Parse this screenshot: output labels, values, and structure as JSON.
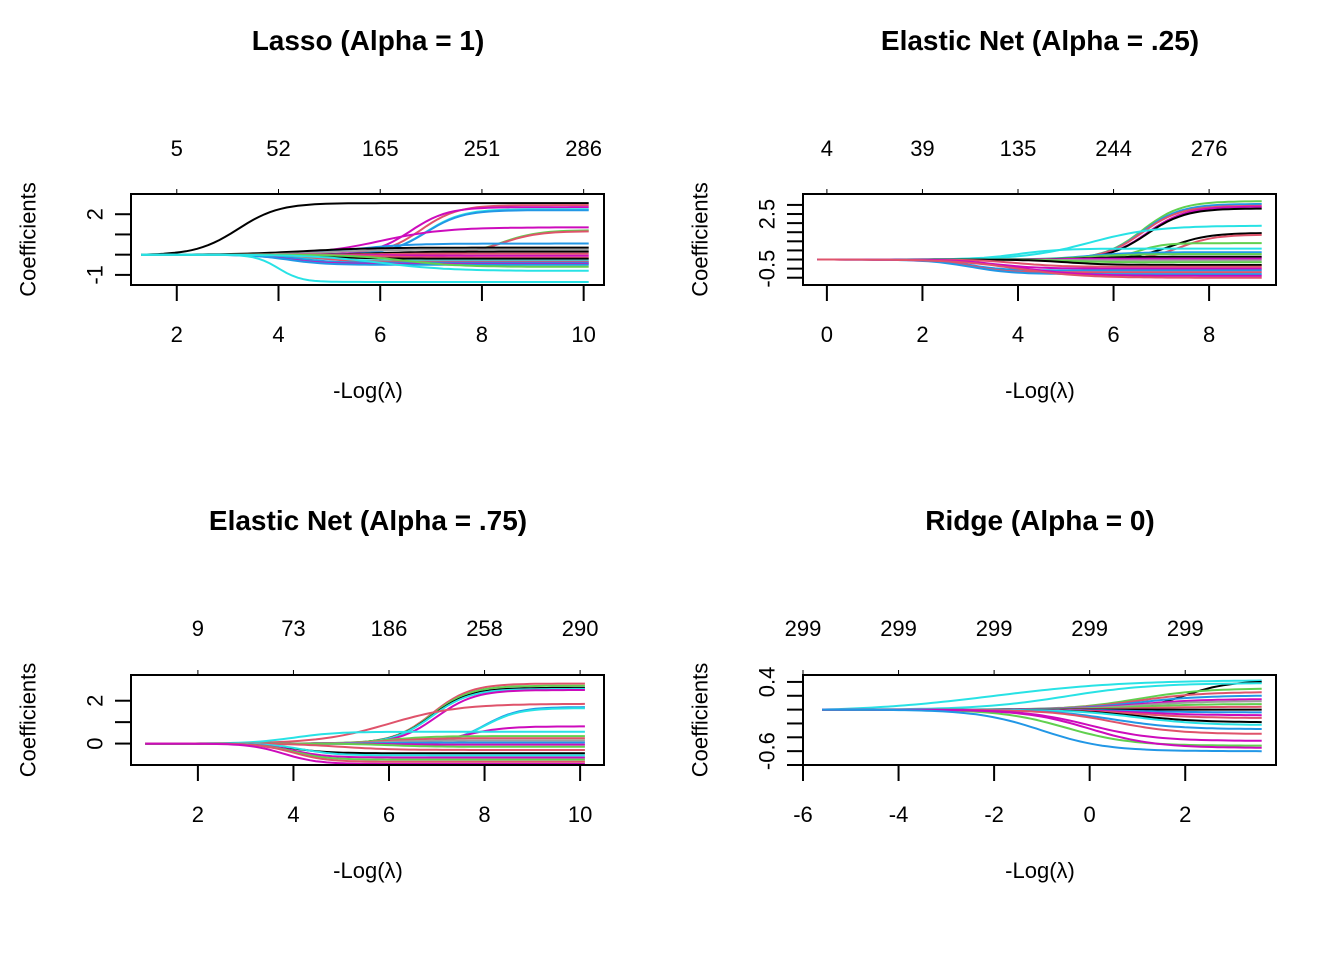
{
  "chart_data": [
    {
      "type": "line",
      "title": "Lasso (Alpha = 1)",
      "xlabel": "-Log(λ)",
      "ylabel": "Coefficients",
      "xlim": [
        1.1,
        10.4
      ],
      "ylim": [
        -1.5,
        3.0
      ],
      "x_ticks": [
        2,
        4,
        6,
        8,
        10
      ],
      "y_ticks": [
        -1,
        0,
        1,
        2
      ],
      "y_tick_labels": [
        "-1",
        "",
        "",
        "2"
      ],
      "top_axis_labels": [
        "5",
        "52",
        "165",
        "251",
        "286"
      ],
      "x_range": [
        1.3,
        10.1
      ],
      "paths": [
        {
          "end": 2.55,
          "start": 3.2,
          "width": 0.9,
          "color": "#000000"
        },
        {
          "end": 2.45,
          "start": 6.8,
          "width": 0.8,
          "color": "#DF536B"
        },
        {
          "end": 2.35,
          "start": 6.6,
          "width": 0.8,
          "color": "#CD0BBC"
        },
        {
          "end": 2.25,
          "start": 6.9,
          "width": 0.8,
          "color": "#28E2E5"
        },
        {
          "end": 2.2,
          "start": 6.9,
          "width": 0.8,
          "color": "#2297E6"
        },
        {
          "end": 1.35,
          "start": 6.0,
          "width": 1.4,
          "color": "#CD0BBC"
        },
        {
          "end": 1.2,
          "start": 8.4,
          "width": 0.8,
          "color": "#61D04F"
        },
        {
          "end": 1.15,
          "start": 8.4,
          "width": 0.8,
          "color": "#DF536B"
        },
        {
          "end": 0.55,
          "start": 5.5,
          "width": 1.2,
          "color": "#2297E6"
        },
        {
          "end": 0.35,
          "start": 4.5,
          "width": 1.5,
          "color": "#000000"
        },
        {
          "end": 0.25,
          "start": 5.0,
          "width": 1.2,
          "color": "#9E9E9E"
        },
        {
          "end": 0.15,
          "start": 6.0,
          "width": 1.0,
          "color": "#000000"
        },
        {
          "end": 0.05,
          "start": 6.0,
          "width": 1.0,
          "color": "#DF536B"
        },
        {
          "end": -0.05,
          "start": 6.0,
          "width": 1.0,
          "color": "#CD0BBC"
        },
        {
          "end": -0.15,
          "start": 6.0,
          "width": 1.0,
          "color": "#DF536B"
        },
        {
          "end": -0.2,
          "start": 5.0,
          "width": 1.0,
          "color": "#000000"
        },
        {
          "end": -0.3,
          "start": 4.5,
          "width": 1.0,
          "color": "#28E2E5"
        },
        {
          "end": -0.35,
          "start": 4.8,
          "width": 0.8,
          "color": "#DF536B"
        },
        {
          "end": -0.4,
          "start": 4.4,
          "width": 0.8,
          "color": "#2297E6"
        },
        {
          "end": -0.45,
          "start": 4.2,
          "width": 0.8,
          "color": "#CD0BBC"
        },
        {
          "end": -0.5,
          "start": 4.2,
          "width": 0.8,
          "color": "#2297E6"
        },
        {
          "end": -0.6,
          "start": 6.5,
          "width": 1.2,
          "color": "#61D04F"
        },
        {
          "end": -0.8,
          "start": 6.0,
          "width": 1.5,
          "color": "#28E2E5"
        },
        {
          "end": -1.35,
          "start": 4.0,
          "width": 0.5,
          "color": "#28E2E5"
        }
      ]
    },
    {
      "type": "line",
      "title": "Elastic Net (Alpha = .25)",
      "xlabel": "-Log(λ)",
      "ylabel": "Coefficients",
      "xlim": [
        -0.5,
        9.4
      ],
      "ylim": [
        -1.4,
        3.6
      ],
      "x_ticks": [
        0,
        2,
        4,
        6,
        8
      ],
      "y_ticks": [
        -1.0,
        -0.5,
        0.0,
        0.5,
        1.0,
        1.5,
        2.0,
        2.5,
        3.0
      ],
      "y_tick_labels": [
        "",
        "-0.5",
        "",
        "",
        "",
        "",
        "",
        "2.5",
        ""
      ],
      "top_axis_labels": [
        "4",
        "39",
        "135",
        "244",
        "276"
      ],
      "x_range": [
        -0.2,
        9.1
      ],
      "paths": [
        {
          "end": 3.2,
          "start": 6.6,
          "width": 0.9,
          "color": "#61D04F"
        },
        {
          "end": 3.05,
          "start": 6.6,
          "width": 0.9,
          "color": "#2297E6"
        },
        {
          "end": 2.95,
          "start": 6.6,
          "width": 0.9,
          "color": "#DF536B"
        },
        {
          "end": 2.9,
          "start": 6.7,
          "width": 0.9,
          "color": "#CD0BBC"
        },
        {
          "end": 2.8,
          "start": 6.7,
          "width": 0.9,
          "color": "#000000"
        },
        {
          "end": 1.85,
          "start": 5.5,
          "width": 1.5,
          "color": "#28E2E5"
        },
        {
          "end": 1.45,
          "start": 7.2,
          "width": 0.9,
          "color": "#000000"
        },
        {
          "end": 1.35,
          "start": 7.4,
          "width": 0.8,
          "color": "#DF536B"
        },
        {
          "end": 0.9,
          "start": 6.5,
          "width": 0.6,
          "color": "#61D04F"
        },
        {
          "end": 0.6,
          "start": 4.0,
          "width": 1.0,
          "color": "#28E2E5"
        },
        {
          "end": 0.4,
          "start": 5.5,
          "width": 1.0,
          "color": "#2297E6"
        },
        {
          "end": 0.3,
          "start": 5.5,
          "width": 1.0,
          "color": "#61D04F"
        },
        {
          "end": 0.15,
          "start": 5.5,
          "width": 1.0,
          "color": "#000000"
        },
        {
          "end": 0.05,
          "start": 5.0,
          "width": 1.0,
          "color": "#CD0BBC"
        },
        {
          "end": -0.05,
          "start": 5.0,
          "width": 1.0,
          "color": "#9E9E9E"
        },
        {
          "end": -0.15,
          "start": 5.0,
          "width": 1.0,
          "color": "#61D04F"
        },
        {
          "end": -0.3,
          "start": 5.0,
          "width": 1.0,
          "color": "#000000"
        },
        {
          "end": -0.4,
          "start": 4.0,
          "width": 1.0,
          "color": "#DF536B"
        },
        {
          "end": -0.5,
          "start": 3.5,
          "width": 1.0,
          "color": "#CD0BBC"
        },
        {
          "end": -0.6,
          "start": 3.0,
          "width": 0.8,
          "color": "#2297E6"
        },
        {
          "end": -0.7,
          "start": 3.0,
          "width": 0.8,
          "color": "#DF536B"
        },
        {
          "end": -0.8,
          "start": 3.0,
          "width": 1.0,
          "color": "#2297E6"
        },
        {
          "end": -0.9,
          "start": 4.0,
          "width": 1.5,
          "color": "#CD0BBC"
        },
        {
          "end": -1.0,
          "start": 4.0,
          "width": 1.5,
          "color": "#DF536B"
        }
      ]
    },
    {
      "type": "line",
      "title": "Elastic Net (Alpha = .75)",
      "xlabel": "-Log(λ)",
      "ylabel": "Coefficients",
      "xlim": [
        0.6,
        10.5
      ],
      "ylim": [
        -1.0,
        3.2
      ],
      "x_ticks": [
        2,
        4,
        6,
        8,
        10
      ],
      "y_ticks": [
        0,
        1,
        2
      ],
      "y_tick_labels": [
        "0",
        "",
        "2"
      ],
      "top_axis_labels": [
        "9",
        "73",
        "186",
        "258",
        "290"
      ],
      "x_range": [
        0.9,
        10.1
      ],
      "paths": [
        {
          "end": 2.8,
          "start": 6.9,
          "width": 0.9,
          "color": "#DF536B"
        },
        {
          "end": 2.7,
          "start": 6.9,
          "width": 0.9,
          "color": "#61D04F"
        },
        {
          "end": 2.6,
          "start": 6.9,
          "width": 0.9,
          "color": "#000000"
        },
        {
          "end": 2.55,
          "start": 6.9,
          "width": 0.9,
          "color": "#28E2E5"
        },
        {
          "end": 2.5,
          "start": 7.0,
          "width": 0.9,
          "color": "#CD0BBC"
        },
        {
          "end": 1.85,
          "start": 6.0,
          "width": 1.6,
          "color": "#DF536B"
        },
        {
          "end": 1.7,
          "start": 8.0,
          "width": 0.8,
          "color": "#2297E6"
        },
        {
          "end": 1.65,
          "start": 8.0,
          "width": 0.8,
          "color": "#28E2E5"
        },
        {
          "end": 0.8,
          "start": 7.6,
          "width": 0.9,
          "color": "#CD0BBC"
        },
        {
          "end": 0.55,
          "start": 4.0,
          "width": 1.0,
          "color": "#28E2E5"
        },
        {
          "end": 0.35,
          "start": 6.0,
          "width": 1.0,
          "color": "#61D04F"
        },
        {
          "end": 0.25,
          "start": 6.0,
          "width": 1.0,
          "color": "#DF536B"
        },
        {
          "end": 0.15,
          "start": 6.0,
          "width": 1.0,
          "color": "#9E9E9E"
        },
        {
          "end": 0.05,
          "start": 6.0,
          "width": 1.0,
          "color": "#2297E6"
        },
        {
          "end": -0.05,
          "start": 6.0,
          "width": 1.0,
          "color": "#CD0BBC"
        },
        {
          "end": -0.15,
          "start": 6.0,
          "width": 1.0,
          "color": "#61D04F"
        },
        {
          "end": -0.3,
          "start": 5.0,
          "width": 1.2,
          "color": "#DF536B"
        },
        {
          "end": -0.45,
          "start": 4.0,
          "width": 0.8,
          "color": "#000000"
        },
        {
          "end": -0.55,
          "start": 4.2,
          "width": 0.8,
          "color": "#28E2E5"
        },
        {
          "end": -0.65,
          "start": 4.0,
          "width": 0.8,
          "color": "#CD0BBC"
        },
        {
          "end": -0.75,
          "start": 4.0,
          "width": 0.8,
          "color": "#61D04F"
        },
        {
          "end": -0.85,
          "start": 4.0,
          "width": 0.8,
          "color": "#DF536B"
        },
        {
          "end": -0.95,
          "start": 3.8,
          "width": 0.8,
          "color": "#CD0BBC"
        }
      ]
    },
    {
      "type": "line",
      "title": "Ridge (Alpha = 0)",
      "xlabel": "-Log(λ)",
      "ylabel": "Coefficients",
      "xlim": [
        -6.0,
        3.9
      ],
      "ylim": [
        -0.8,
        0.5
      ],
      "x_ticks": [
        -6,
        -4,
        -2,
        0,
        2
      ],
      "y_ticks": [
        -0.8,
        -0.6,
        -0.4,
        -0.2,
        0.0,
        0.2,
        0.4
      ],
      "y_tick_labels": [
        "",
        "-0.6",
        "",
        "",
        "",
        "",
        "0.4"
      ],
      "top_axis_labels": [
        "299",
        "299",
        "299",
        "299",
        "299"
      ],
      "x_range": [
        -5.6,
        3.6
      ],
      "paths": [
        {
          "end": 0.42,
          "start": -2.0,
          "width": 3.0,
          "color": "#28E2E5"
        },
        {
          "end": 0.4,
          "start": 2.0,
          "width": 1.0,
          "color": "#000000"
        },
        {
          "end": 0.38,
          "start": -0.5,
          "width": 2.0,
          "color": "#28E2E5"
        },
        {
          "end": 0.3,
          "start": 1.0,
          "width": 1.5,
          "color": "#61D04F"
        },
        {
          "end": 0.25,
          "start": 1.0,
          "width": 1.5,
          "color": "#DF536B"
        },
        {
          "end": 0.2,
          "start": 1.0,
          "width": 1.5,
          "color": "#2297E6"
        },
        {
          "end": 0.15,
          "start": 1.0,
          "width": 1.5,
          "color": "#CD0BBC"
        },
        {
          "end": 0.12,
          "start": 1.0,
          "width": 1.5,
          "color": "#9E9E9E"
        },
        {
          "end": 0.08,
          "start": 1.0,
          "width": 1.5,
          "color": "#61D04F"
        },
        {
          "end": 0.04,
          "start": 1.0,
          "width": 1.5,
          "color": "#DF536B"
        },
        {
          "end": 0.0,
          "start": 1.0,
          "width": 1.5,
          "color": "#000000"
        },
        {
          "end": -0.04,
          "start": 1.0,
          "width": 1.5,
          "color": "#2297E6"
        },
        {
          "end": -0.08,
          "start": 1.0,
          "width": 1.5,
          "color": "#CD0BBC"
        },
        {
          "end": -0.12,
          "start": 1.0,
          "width": 1.5,
          "color": "#DF536B"
        },
        {
          "end": -0.18,
          "start": 1.0,
          "width": 1.5,
          "color": "#000000"
        },
        {
          "end": -0.22,
          "start": 1.0,
          "width": 1.5,
          "color": "#28E2E5"
        },
        {
          "end": -0.28,
          "start": 0.5,
          "width": 1.5,
          "color": "#2297E6"
        },
        {
          "end": -0.35,
          "start": 0.5,
          "width": 1.5,
          "color": "#DF536B"
        },
        {
          "end": -0.45,
          "start": 0.0,
          "width": 1.5,
          "color": "#CD0BBC"
        },
        {
          "end": -0.52,
          "start": -0.5,
          "width": 1.5,
          "color": "#61D04F"
        },
        {
          "end": -0.55,
          "start": 0.0,
          "width": 1.5,
          "color": "#CD0BBC"
        },
        {
          "end": -0.6,
          "start": -1.0,
          "width": 1.5,
          "color": "#2297E6"
        }
      ]
    }
  ],
  "panels_layout": "2x2"
}
